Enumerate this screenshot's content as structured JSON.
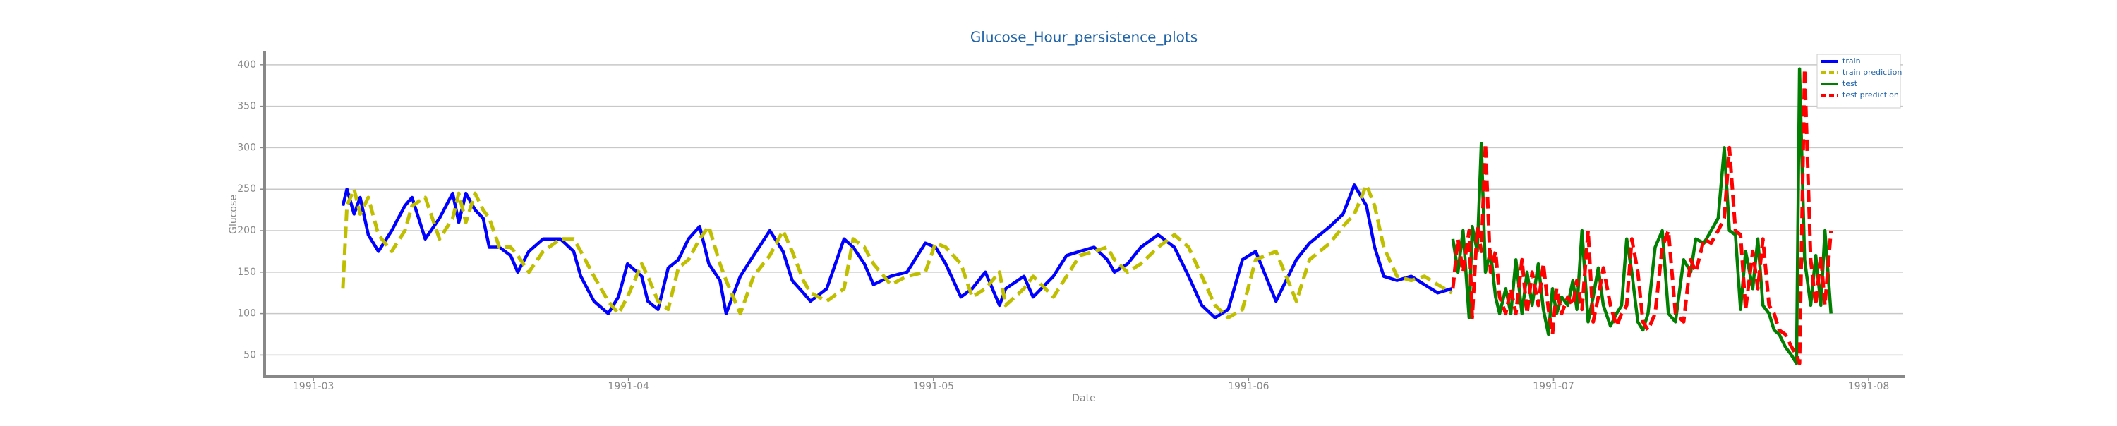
{
  "chart_data": {
    "type": "line",
    "title": "Glucose_Hour_persistence_plots",
    "xlabel": "Date",
    "ylabel": "Glucose",
    "xlim": [
      -4.8,
      156.4
    ],
    "xticks": [
      {
        "value": 0,
        "label": "1991-03"
      },
      {
        "value": 31,
        "label": "1991-04"
      },
      {
        "value": 61,
        "label": "1991-05"
      },
      {
        "value": 92,
        "label": "1991-06"
      },
      {
        "value": 122,
        "label": "1991-07"
      },
      {
        "value": 153,
        "label": "1991-08"
      }
    ],
    "ylim": [
      24,
      416
    ],
    "yticks": [
      50,
      100,
      150,
      200,
      250,
      300,
      350,
      400
    ],
    "grid": true,
    "legend": "upper right",
    "series": [
      {
        "name": "train",
        "color": "#0000ff",
        "linestyle": "solid",
        "x": [
          2.9,
          3.3,
          4.0,
          4.6,
          5.4,
          6.4,
          7.7,
          9.0,
          9.7,
          11.0,
          12.4,
          13.7,
          14.3,
          15.0,
          15.9,
          16.7,
          17.3,
          18.3,
          19.4,
          20.1,
          21.2,
          22.6,
          24.3,
          25.6,
          26.3,
          27.6,
          29.0,
          30.0,
          30.9,
          32.3,
          32.9,
          33.9,
          34.9,
          35.9,
          36.9,
          38.0,
          38.9,
          40.0,
          40.6,
          42.0,
          43.3,
          44.9,
          46.2,
          47.1,
          48.2,
          48.9,
          50.5,
          52.2,
          53.1,
          54.2,
          55.1,
          56.8,
          58.4,
          60.2,
          61.2,
          62.2,
          63.7,
          64.8,
          66.1,
          67.5,
          68.1,
          69.9,
          70.8,
          72.8,
          74.1,
          75.4,
          76.8,
          78.1,
          78.8,
          80.1,
          81.4,
          83.1,
          84.7,
          86.1,
          87.4,
          88.7,
          90.0,
          91.4,
          92.7,
          94.7,
          96.7,
          98.0,
          100.0,
          101.3,
          102.4,
          103.6,
          104.4,
          105.3,
          106.6,
          108.0,
          109.3,
          110.6,
          112.0
        ],
        "values": [
          230,
          250,
          220,
          240,
          195,
          175,
          200,
          230,
          240,
          190,
          215,
          245,
          210,
          245,
          225,
          215,
          180,
          180,
          170,
          150,
          175,
          190,
          190,
          175,
          145,
          115,
          100,
          120,
          160,
          145,
          115,
          105,
          155,
          165,
          190,
          205,
          160,
          140,
          100,
          145,
          170,
          200,
          175,
          140,
          125,
          115,
          130,
          190,
          180,
          160,
          135,
          145,
          150,
          185,
          180,
          160,
          120,
          130,
          150,
          110,
          130,
          145,
          120,
          145,
          170,
          175,
          180,
          165,
          150,
          160,
          180,
          195,
          180,
          145,
          110,
          95,
          105,
          165,
          175,
          115,
          165,
          185,
          205,
          220,
          255,
          230,
          180,
          145,
          140,
          145,
          135,
          125,
          130
        ]
      },
      {
        "name": "train prediction",
        "color": "#bfbf00",
        "linestyle": "dashed",
        "x": [
          2.9,
          3.3,
          4.0,
          4.6,
          5.4,
          6.4,
          7.7,
          9.0,
          9.7,
          11.0,
          12.4,
          13.7,
          14.3,
          15.0,
          15.9,
          16.7,
          17.3,
          18.3,
          19.4,
          20.1,
          21.2,
          22.6,
          24.3,
          25.6,
          26.3,
          27.6,
          29.0,
          30.0,
          30.9,
          32.3,
          32.9,
          33.9,
          34.9,
          35.9,
          36.9,
          38.0,
          38.9,
          40.0,
          40.6,
          42.0,
          43.3,
          44.9,
          46.2,
          47.1,
          48.2,
          48.9,
          50.5,
          52.2,
          53.1,
          54.2,
          55.1,
          56.8,
          58.4,
          60.2,
          61.2,
          62.2,
          63.7,
          64.8,
          66.1,
          67.5,
          68.1,
          69.9,
          70.8,
          72.8,
          74.1,
          75.4,
          76.8,
          78.1,
          78.8,
          80.1,
          81.4,
          83.1,
          84.7,
          86.1,
          87.4,
          88.7,
          90.0,
          91.4,
          92.7,
          94.7,
          96.7,
          98.0,
          100.0,
          101.3,
          102.4,
          103.6,
          104.4,
          105.3,
          106.6,
          108.0,
          109.3,
          110.6,
          112.0
        ],
        "values": [
          130,
          230,
          250,
          220,
          240,
          195,
          175,
          200,
          230,
          240,
          190,
          215,
          245,
          210,
          245,
          225,
          215,
          180,
          180,
          170,
          150,
          175,
          190,
          190,
          175,
          145,
          115,
          100,
          120,
          160,
          145,
          115,
          105,
          155,
          165,
          190,
          205,
          160,
          140,
          100,
          145,
          170,
          200,
          175,
          140,
          125,
          115,
          130,
          190,
          180,
          160,
          135,
          145,
          150,
          185,
          180,
          160,
          120,
          130,
          150,
          110,
          130,
          145,
          120,
          145,
          170,
          175,
          180,
          165,
          150,
          160,
          180,
          195,
          180,
          145,
          110,
          95,
          105,
          165,
          175,
          115,
          165,
          185,
          205,
          220,
          255,
          230,
          180,
          145,
          140,
          145,
          135,
          125
        ]
      },
      {
        "name": "test",
        "color": "#007f00",
        "linestyle": "solid",
        "x": [
          112.1,
          112.6,
          113.1,
          113.7,
          114.0,
          114.5,
          114.9,
          115.3,
          115.8,
          116.3,
          116.7,
          117.3,
          117.8,
          118.3,
          118.9,
          119.4,
          119.9,
          120.5,
          121.0,
          121.5,
          121.9,
          122.3,
          122.8,
          123.4,
          123.9,
          124.3,
          124.8,
          125.4,
          125.9,
          126.4,
          126.9,
          127.6,
          128.2,
          128.7,
          129.2,
          129.7,
          130.3,
          130.8,
          131.3,
          132.0,
          132.7,
          133.3,
          134.0,
          134.8,
          135.5,
          136.0,
          136.8,
          137.5,
          138.2,
          138.8,
          139.3,
          139.9,
          140.4,
          140.9,
          141.6,
          142.1,
          142.6,
          143.2,
          143.7,
          144.2,
          144.8,
          145.4,
          145.9,
          146.2,
          146.7,
          147.3,
          147.8,
          148.3,
          148.7,
          149.3
        ],
        "values": [
          190,
          150,
          200,
          95,
          205,
          175,
          305,
          150,
          175,
          120,
          100,
          130,
          100,
          165,
          100,
          150,
          110,
          160,
          105,
          75,
          130,
          100,
          120,
          110,
          140,
          105,
          200,
          90,
          120,
          155,
          110,
          85,
          100,
          110,
          190,
          150,
          90,
          80,
          100,
          180,
          200,
          100,
          90,
          165,
          150,
          190,
          185,
          200,
          215,
          300,
          200,
          195,
          105,
          175,
          130,
          190,
          110,
          100,
          80,
          75,
          60,
          50,
          40,
          395,
          165,
          110,
          170,
          110,
          200,
          100
        ]
      },
      {
        "name": "test prediction",
        "color": "#ff0000",
        "linestyle": "dashed",
        "x": [
          112.1,
          112.6,
          113.1,
          113.7,
          114.0,
          114.5,
          114.9,
          115.3,
          115.8,
          116.3,
          116.7,
          117.3,
          117.8,
          118.3,
          118.9,
          119.4,
          119.9,
          120.5,
          121.0,
          121.5,
          121.9,
          122.3,
          122.8,
          123.4,
          123.9,
          124.3,
          124.8,
          125.4,
          125.9,
          126.4,
          126.9,
          127.6,
          128.2,
          128.7,
          129.2,
          129.7,
          130.3,
          130.8,
          131.3,
          132.0,
          132.7,
          133.3,
          134.0,
          134.8,
          135.5,
          136.0,
          136.8,
          137.5,
          138.2,
          138.8,
          139.3,
          139.9,
          140.4,
          140.9,
          141.6,
          142.1,
          142.6,
          143.2,
          143.7,
          144.2,
          144.8,
          145.4,
          145.9,
          146.2,
          146.7,
          147.3,
          147.8,
          148.3,
          148.7,
          149.3
        ],
        "values": [
          130,
          190,
          150,
          200,
          95,
          205,
          175,
          305,
          150,
          175,
          120,
          100,
          130,
          100,
          165,
          100,
          150,
          110,
          160,
          105,
          75,
          130,
          100,
          120,
          110,
          140,
          105,
          200,
          90,
          120,
          155,
          110,
          85,
          100,
          110,
          190,
          150,
          90,
          80,
          100,
          180,
          200,
          100,
          90,
          165,
          150,
          190,
          185,
          200,
          215,
          300,
          200,
          195,
          105,
          175,
          130,
          190,
          110,
          100,
          80,
          75,
          60,
          50,
          40,
          395,
          165,
          110,
          170,
          110,
          200
        ]
      }
    ]
  }
}
